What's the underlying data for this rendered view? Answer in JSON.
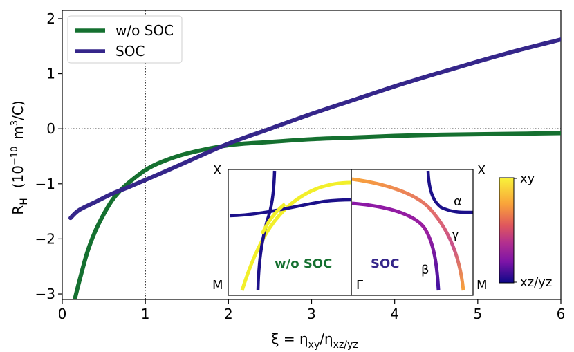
{
  "chart_data": {
    "type": "line",
    "xlabel": {
      "main": "ξ = η",
      "sub1": "xy",
      "slash": "/η",
      "sub2": "xz/yz"
    },
    "ylabel": {
      "main": "R",
      "sub": "H",
      "unit_open": "(10",
      "unit_exp": "−10",
      "unit_mid": "m",
      "unit_exp2": "3",
      "unit_close": "/C)"
    },
    "xlim": [
      0,
      6
    ],
    "ylim": [
      -3.1,
      2.15
    ],
    "x_ticks": [
      0,
      1,
      2,
      3,
      4,
      5,
      6
    ],
    "x_tick_labels": [
      "0",
      "1",
      "2",
      "3",
      "4",
      "5",
      "6"
    ],
    "y_ticks": [
      -3,
      -2,
      -1,
      0,
      1,
      2
    ],
    "y_tick_labels": [
      "−3",
      "−2",
      "−1",
      "0",
      "1",
      "2"
    ],
    "reference_lines": {
      "x": 1,
      "y": 0,
      "style": "dotted"
    },
    "legend_position": "top-left",
    "series": [
      {
        "name": "w/o SOC",
        "color": "#157030",
        "x": [
          0.15,
          0.2,
          0.3,
          0.4,
          0.5,
          0.6,
          0.7,
          0.8,
          1.0,
          1.2,
          1.5,
          2.0,
          2.5,
          3.0,
          3.5,
          4.0,
          4.5,
          5.0,
          5.5,
          6.0
        ],
        "y": [
          -3.1,
          -2.8,
          -2.25,
          -1.85,
          -1.55,
          -1.3,
          -1.12,
          -0.98,
          -0.75,
          -0.6,
          -0.45,
          -0.3,
          -0.24,
          -0.19,
          -0.16,
          -0.13,
          -0.11,
          -0.1,
          -0.09,
          -0.08
        ]
      },
      {
        "name": "SOC",
        "color": "#35268a",
        "x": [
          0.1,
          0.2,
          0.4,
          0.6,
          0.8,
          1.0,
          1.2,
          1.5,
          2.0,
          2.5,
          3.0,
          3.5,
          4.0,
          4.5,
          5.0,
          5.5,
          6.0
        ],
        "y": [
          -1.62,
          -1.48,
          -1.33,
          -1.18,
          -1.06,
          -0.93,
          -0.8,
          -0.6,
          -0.27,
          0.0,
          0.27,
          0.52,
          0.77,
          1.0,
          1.22,
          1.43,
          1.62
        ]
      }
    ],
    "inset": {
      "corner_labels": {
        "top_left": "X",
        "top_right": "X",
        "bottom_left": "M",
        "bottom_right": "M",
        "bottom_mid": "Γ"
      },
      "panel_left_label": "w/o SOC",
      "panel_right_label": "SOC",
      "band_labels": {
        "alpha": "α",
        "gamma": "γ",
        "beta": "β"
      },
      "colorbar": {
        "top_label": "xy",
        "bottom_label": "xz/yz",
        "colors": [
          "#f9f33a",
          "#f9a33a",
          "#e0585c",
          "#b22f8f",
          "#7d14a7",
          "#2d0a8e",
          "#0d0887"
        ]
      }
    }
  }
}
